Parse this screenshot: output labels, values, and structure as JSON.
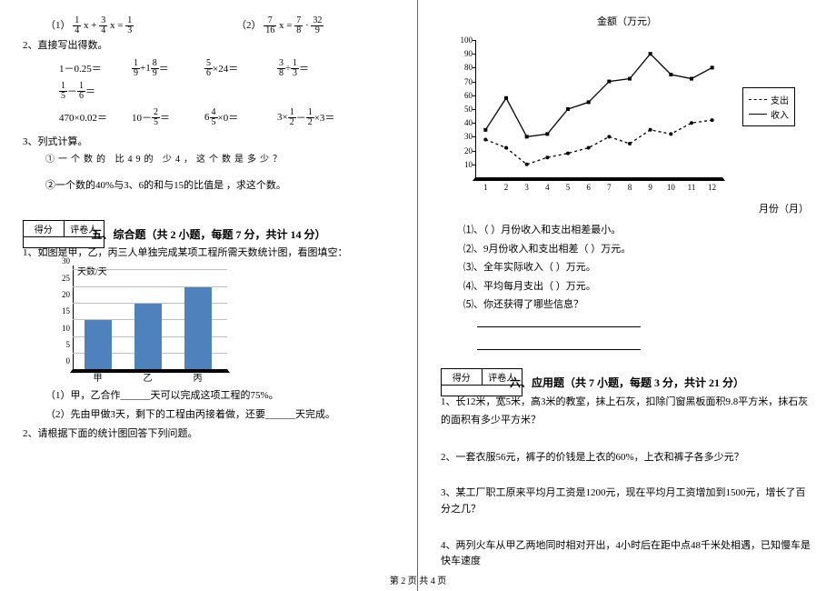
{
  "leftCol": {
    "eq1": {
      "label": "（1）",
      "parts": [
        "1",
        "4",
        "x +",
        "3",
        "4",
        "x =",
        "1",
        "3"
      ]
    },
    "eq2": {
      "label": "（2）",
      "parts": [
        "7",
        "16",
        " x =",
        "7",
        "8",
        "·",
        "32",
        "9"
      ]
    },
    "q2_title": "2、直接写出得数。",
    "eq_grid_row1": [
      {
        "pre": "1－0.25＝",
        "f": null
      },
      {
        "pre": "",
        "n": "1",
        "d": "9",
        "mid": "+1",
        "n2": "8",
        "d2": "9",
        "post": "＝"
      },
      {
        "pre": "",
        "n": "5",
        "d": "6",
        "mid": "×24＝",
        "n2": null
      },
      {
        "pre": "",
        "n": "3",
        "d": "8",
        "mid": "÷",
        "n2": "1",
        "d2": "3",
        "post": "＝"
      },
      {
        "pre": "",
        "n": "1",
        "d": "5",
        "mid": "－",
        "n2": "1",
        "d2": "6",
        "post": "＝"
      }
    ],
    "eq_grid_row2": [
      {
        "pre": "470×0.02＝"
      },
      {
        "pre": "10－",
        "n": "2",
        "d": "5",
        "post": "＝"
      },
      {
        "pre": "6",
        "n": "4",
        "d": "5",
        "post": "×0＝"
      },
      {
        "pre": "3×",
        "n": "1",
        "d": "2",
        "mid": "－",
        "n2": "1",
        "d2": "2",
        "post": "×3＝"
      }
    ],
    "q3_title": "3、列式计算。",
    "q3_1": "①一个数的 比49的 少4，这个数是多少？",
    "q3_2": "②一个数的40%与3、6的和与15的比值是 ，求这个数。",
    "score_labels": [
      "得分",
      "评卷人"
    ],
    "section5": "五、综合题（共 2 小题，每题 7 分，共计 14 分）",
    "q5_1": "1、如图是甲，乙，丙三人单独完成某项工程所需天数统计图，看图填空：",
    "barchart": {
      "ylabel": "天数/天",
      "yticks": [
        0,
        5,
        10,
        15,
        20,
        25,
        30
      ],
      "categories": [
        "甲",
        "乙",
        "丙"
      ],
      "values": [
        15,
        20,
        25
      ],
      "bar_color": "#4f81bd",
      "grid_color": "#bfbfbf",
      "ymax": 30
    },
    "q5_1a": "（1）甲，乙合作______天可以完成这项工程的75%。",
    "q5_1b": "（2）先由甲做3天，剩下的工程由丙接着做，还要______天完成。",
    "q5_2": "2、请根据下面的统计图回答下列问题。"
  },
  "rightCol": {
    "chart_title": "金额（万元）",
    "x_title": "月份（月）",
    "linechart": {
      "yticks": [
        10,
        20,
        30,
        40,
        50,
        60,
        70,
        80,
        90,
        100
      ],
      "xticks": [
        1,
        2,
        3,
        4,
        5,
        6,
        7,
        8,
        9,
        10,
        11,
        12
      ],
      "ymax": 100,
      "series": [
        {
          "name": "支出",
          "style": "dashed",
          "data": [
            28,
            22,
            10,
            15,
            18,
            22,
            30,
            25,
            35,
            32,
            40,
            42
          ]
        },
        {
          "name": "收入",
          "style": "solid",
          "data": [
            35,
            58,
            30,
            32,
            50,
            55,
            70,
            72,
            90,
            75,
            72,
            80
          ]
        }
      ],
      "legend": [
        "支出",
        "收入"
      ]
    },
    "subq": [
      "⑴、（   ）月份收入和支出相差最小。",
      "⑵、9月份收入和支出相差（   ）万元。",
      "⑶、全年实际收入（   ）万元。",
      "⑷、平均每月支出（   ）万元。",
      "⑸、你还获得了哪些信息？"
    ],
    "score_labels": [
      "得分",
      "评卷人"
    ],
    "section6": "六、应用题（共 7 小题，每题 3 分，共计 21 分）",
    "q6_1": "1、长12米，宽5米，高3米的教室，抹上石灰，扣除门窗黑板面积9.8平方米，抹石灰的面积有多少平方米？",
    "q6_2": "2、一套衣服56元，裤子的价钱是上衣的60%，上衣和裤子各多少元？",
    "q6_3": "3、某工厂职工原来平均月工资是1200元，现在平均月工资增加到1500元，增长了百分之几？",
    "q6_4": "4、两列火车从甲乙两地同时相对开出，4小时后在距中点48千米处相遇，已知慢车是快车速度"
  },
  "pager": "第 2 页 共 4 页"
}
